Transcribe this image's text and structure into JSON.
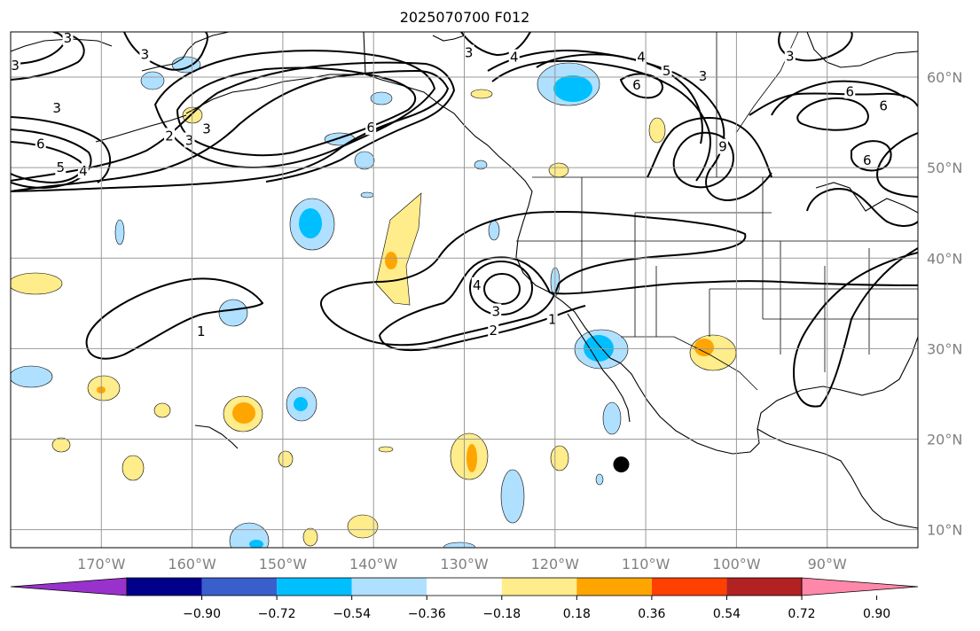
{
  "title": "2025070700 F012",
  "map": {
    "lon_range": [
      -180,
      -80
    ],
    "lat_range": [
      8,
      65
    ],
    "lat_ticks": [
      {
        "value": 10,
        "label": "10°N"
      },
      {
        "value": 20,
        "label": "20°N"
      },
      {
        "value": 30,
        "label": "30°N"
      },
      {
        "value": 40,
        "label": "40°N"
      },
      {
        "value": 50,
        "label": "50°N"
      },
      {
        "value": 60,
        "label": "60°N"
      }
    ],
    "lon_ticks": [
      {
        "value": -170,
        "label": "170°W"
      },
      {
        "value": -160,
        "label": "160°W"
      },
      {
        "value": -150,
        "label": "150°W"
      },
      {
        "value": -140,
        "label": "140°W"
      },
      {
        "value": -130,
        "label": "130°W"
      },
      {
        "value": -120,
        "label": "120°W"
      },
      {
        "value": -110,
        "label": "110°W"
      },
      {
        "value": -100,
        "label": "100°W"
      },
      {
        "value": -90,
        "label": "90°W"
      }
    ],
    "contour_labels": [
      {
        "text": "3",
        "lon": -173.7,
        "lat": 64.3
      },
      {
        "text": "3",
        "lon": -165.2,
        "lat": 62.5
      },
      {
        "text": "3",
        "lon": -129.5,
        "lat": 62.7
      },
      {
        "text": "4",
        "lon": -124.5,
        "lat": 62.2
      },
      {
        "text": "4",
        "lon": -110.5,
        "lat": 62.2
      },
      {
        "text": "5",
        "lon": -107.7,
        "lat": 60.7
      },
      {
        "text": "3",
        "lon": -103.7,
        "lat": 60.1
      },
      {
        "text": "6",
        "lon": -111.0,
        "lat": 59.1
      },
      {
        "text": "3",
        "lon": -179.5,
        "lat": 61.3
      },
      {
        "text": "3",
        "lon": -174.9,
        "lat": 56.6
      },
      {
        "text": "3",
        "lon": -158.4,
        "lat": 54.3
      },
      {
        "text": "2",
        "lon": -162.5,
        "lat": 53.5
      },
      {
        "text": "3",
        "lon": -160.3,
        "lat": 53.0
      },
      {
        "text": "6",
        "lon": -140.3,
        "lat": 54.4
      },
      {
        "text": "6",
        "lon": -176.7,
        "lat": 52.6
      },
      {
        "text": "5",
        "lon": -174.5,
        "lat": 50.0
      },
      {
        "text": "4",
        "lon": -172.0,
        "lat": 49.6
      },
      {
        "text": "9",
        "lon": -101.5,
        "lat": 52.3
      },
      {
        "text": "3",
        "lon": -94.1,
        "lat": 62.3
      },
      {
        "text": "6",
        "lon": -87.5,
        "lat": 58.4
      },
      {
        "text": "6",
        "lon": -83.8,
        "lat": 56.8
      },
      {
        "text": "6",
        "lon": -85.6,
        "lat": 50.8
      },
      {
        "text": "4",
        "lon": -128.6,
        "lat": 37.0
      },
      {
        "text": "3",
        "lon": -126.5,
        "lat": 34.1
      },
      {
        "text": "2",
        "lon": -126.8,
        "lat": 32.0
      },
      {
        "text": "1",
        "lon": -120.3,
        "lat": 33.2
      },
      {
        "text": "1",
        "lon": -159.0,
        "lat": 31.9
      }
    ],
    "marker": {
      "lon": -112.7,
      "lat": 17.2,
      "color": "#000000"
    }
  },
  "colorbar": {
    "colors": [
      "#9932cc",
      "#00008b",
      "#3a5fcd",
      "#00bfff",
      "#b0e0ff",
      "#ffffff",
      "#ffec8b",
      "#ffa500",
      "#ff4000",
      "#b22222",
      "#ff88aa"
    ],
    "ticks": [
      "−0.90",
      "−0.72",
      "−0.54",
      "−0.36",
      "−0.18",
      "0.18",
      "0.36",
      "0.54",
      "0.72",
      "0.90"
    ]
  },
  "colors": {
    "land_outline": "#000000",
    "gridline": "#9a9a9a",
    "axis_label": "#808080",
    "shade_yellow": "#ffec8b",
    "shade_orange": "#ffa500",
    "shade_lightblue": "#b0e0ff",
    "shade_blue": "#00bfff"
  }
}
